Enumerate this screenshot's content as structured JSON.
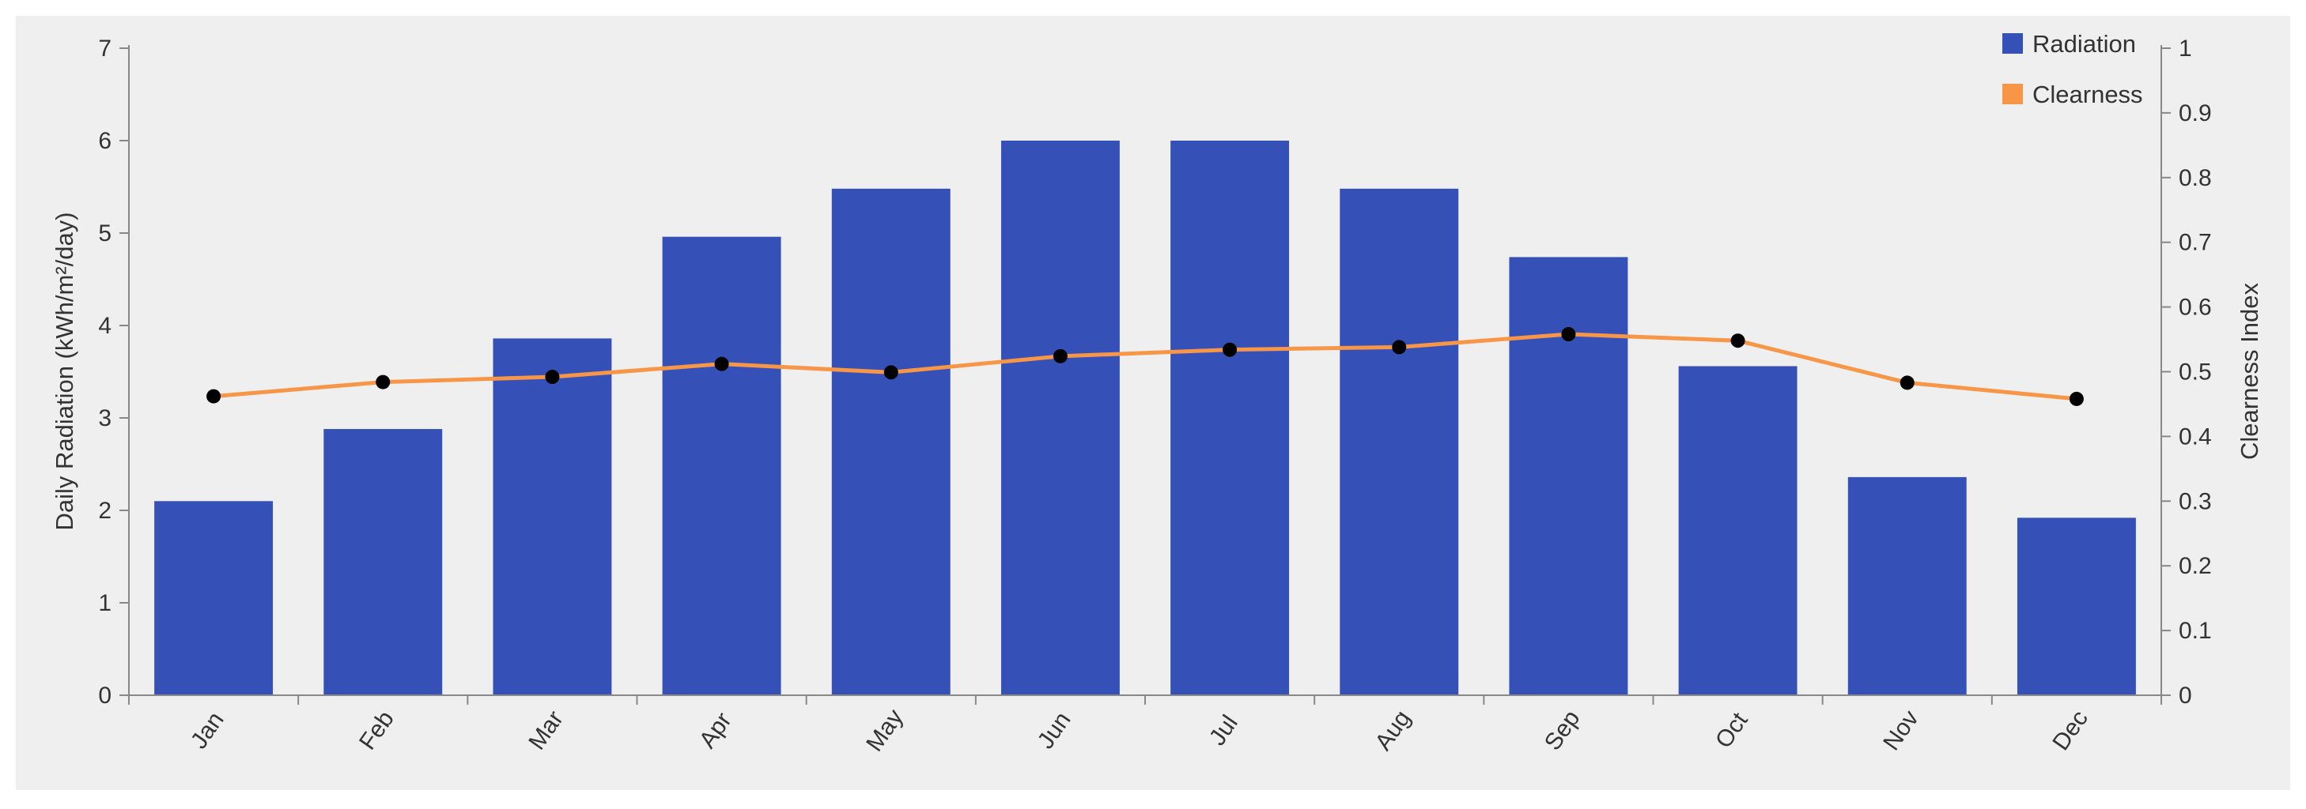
{
  "chart_data": {
    "type": "bar",
    "categories": [
      "Jan",
      "Feb",
      "Mar",
      "Apr",
      "May",
      "Jun",
      "Jul",
      "Aug",
      "Sep",
      "Oct",
      "Nov",
      "Dec"
    ],
    "series": [
      {
        "name": "Radiation",
        "type": "bar",
        "axis": "left",
        "color": "#3551b8",
        "values": [
          2.1,
          2.88,
          3.86,
          4.96,
          5.48,
          6.0,
          6.0,
          5.48,
          4.74,
          3.56,
          2.36,
          1.92
        ]
      },
      {
        "name": "Clearness",
        "type": "line",
        "axis": "right",
        "color": "#f79646",
        "values": [
          0.462,
          0.484,
          0.492,
          0.512,
          0.499,
          0.524,
          0.534,
          0.538,
          0.558,
          0.548,
          0.483,
          0.458
        ]
      }
    ],
    "ylabel": "Daily Radiation (kWh/m²/day)",
    "ylabel_right": "Clearness Index",
    "ylim": [
      0,
      7
    ],
    "ylim_right": [
      0,
      1
    ],
    "yticks": [
      "0",
      "1",
      "2",
      "3",
      "4",
      "5",
      "6",
      "7"
    ],
    "yticks_right": [
      "0",
      "0.1",
      "0.2",
      "0.3",
      "0.4",
      "0.5",
      "0.6",
      "0.7",
      "0.8",
      "0.9",
      "1"
    ],
    "grid": false,
    "legend_position": "top-right",
    "background_color": "#efefef",
    "marker_color": "#000000"
  }
}
